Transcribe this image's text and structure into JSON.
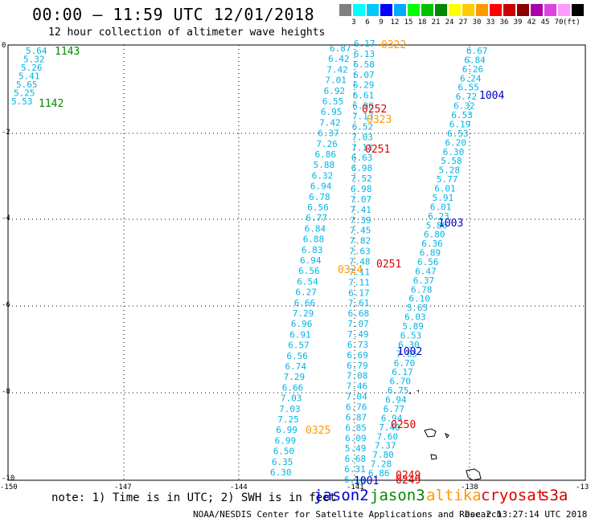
{
  "header": {
    "title": "00:00 — 11:59 UTC 12/01/2018",
    "subtitle": "12 hour collection of altimeter wave heights"
  },
  "colorbar": {
    "unit": "(ft)",
    "colors": [
      "#808080",
      "#00ffff",
      "#00c8ff",
      "#0000ff",
      "#00aaff",
      "#00ff00",
      "#00c000",
      "#008800",
      "#ffff00",
      "#ffcc00",
      "#ff9900",
      "#ff0000",
      "#cc0000",
      "#880000",
      "#aa00aa",
      "#dd44dd",
      "#ff99ff",
      "#000000"
    ],
    "labels": [
      "3",
      "6",
      "9",
      "12",
      "15",
      "18",
      "21",
      "24",
      "27",
      "30",
      "33",
      "36",
      "39",
      "42",
      "45",
      "70"
    ]
  },
  "axes": {
    "x_ticks": [
      "-150",
      "-147",
      "-144",
      "-141",
      "-138",
      "-13"
    ],
    "y_ticks": [
      "0",
      "-2",
      "-4",
      "-6",
      "-8",
      "-10"
    ]
  },
  "passes": [
    {
      "label": "1143",
      "color": "#008800"
    },
    {
      "label": "1142",
      "color": "#008800"
    },
    {
      "label": "0322",
      "color": "#ff9900"
    },
    {
      "label": "1004",
      "color": "#0000cc"
    },
    {
      "label": "0252",
      "color": "#dd0000"
    },
    {
      "label": "0323",
      "color": "#ff9900"
    },
    {
      "label": "0251",
      "color": "#dd0000"
    },
    {
      "label": "1003",
      "color": "#0000cc"
    },
    {
      "label": "0324",
      "color": "#ff9900"
    },
    {
      "label": "0251",
      "color": "#dd0000"
    },
    {
      "label": "1002",
      "color": "#0000cc"
    },
    {
      "label": "0250",
      "color": "#dd0000"
    },
    {
      "label": "0325",
      "color": "#ff9900"
    },
    {
      "label": "0249",
      "color": "#dd0000"
    },
    {
      "label": "0249",
      "color": "#dd0000"
    },
    {
      "label": "1001",
      "color": "#0000cc"
    }
  ],
  "wave_tracks": [
    {
      "name": "track-a",
      "values": [
        "5.64",
        "5.32",
        "5.26",
        "5.41",
        "5.65",
        "5.25",
        "5.53"
      ]
    },
    {
      "name": "track-b",
      "values": [
        "6.87",
        "6.42",
        "7.42",
        "7.01",
        "6.92",
        "6.55",
        "6.95",
        "7.42",
        "6.37",
        "7.26",
        "6.86",
        "5.88",
        "6.32",
        "6.94",
        "6.78",
        "6.56",
        "6.77",
        "6.84",
        "6.88",
        "6.83",
        "6.94",
        "6.56",
        "6.54",
        "6.27",
        "6.66",
        "7.29",
        "6.96",
        "6.91",
        "6.57",
        "6.56",
        "6.74",
        "7.29",
        "6.66",
        "7.03",
        "7.03",
        "7.25",
        "6.99",
        "6.99",
        "6.50",
        "6.35",
        "6.30"
      ]
    },
    {
      "name": "track-c",
      "values": [
        "6.17",
        "6.13",
        "6.58",
        "6.07",
        "6.29",
        "6.61",
        "6.98",
        "7.13",
        "6.52",
        "7.03",
        "7.13",
        "6.63",
        "6.98",
        "7.52",
        "6.98",
        "7.07",
        "7.41",
        "7.39",
        "7.45",
        "7.82",
        "7.63",
        "7.48",
        "7.11",
        "7.11",
        "6.17",
        "7.61",
        "6.68",
        "7.07",
        "7.49",
        "6.73",
        "6.69",
        "6.79",
        "7.08",
        "7.46",
        "7.04",
        "6.76",
        "6.87",
        "6.85",
        "6.09",
        "5.49",
        "6.68",
        "6.31",
        "6.16"
      ]
    },
    {
      "name": "track-d",
      "values": [
        "6.67",
        "6.84",
        "6.26",
        "6.24",
        "6.55",
        "6.72",
        "6.32",
        "6.53",
        "6.19",
        "6.53",
        "6.20",
        "6.30",
        "5.58",
        "5.28",
        "5.77",
        "6.01",
        "5.91",
        "6.01",
        "6.23",
        "5.86",
        "6.80",
        "6.36",
        "6.89",
        "6.56",
        "6.47",
        "6.37",
        "6.78",
        "6.10",
        "5.65",
        "6.03",
        "5.89",
        "6.53",
        "6.30",
        "7.05",
        "6.70",
        "6.17",
        "6.70",
        "6.75",
        "6.94",
        "6.77",
        "6.94",
        "7.40",
        "7.60",
        "7.37",
        "7.80",
        "7.28",
        "6.86"
      ]
    }
  ],
  "legend": {
    "note": "note: 1) Time is in UTC; 2) SWH is in feet",
    "satellites": [
      {
        "label": "jason2",
        "color": "#0000cc"
      },
      {
        "label": "jason3",
        "color": "#008800"
      },
      {
        "label": "altika",
        "color": "#ff9900"
      },
      {
        "label": "cryosat",
        "color": "#dd0000"
      },
      {
        "label": "s3a",
        "color": "#cc0000"
      }
    ]
  },
  "footer": {
    "credit": "NOAA/NESDIS Center for Satellite Applications and Research",
    "timestamp": "Dec  2 13:27:14 UTC 2018"
  }
}
